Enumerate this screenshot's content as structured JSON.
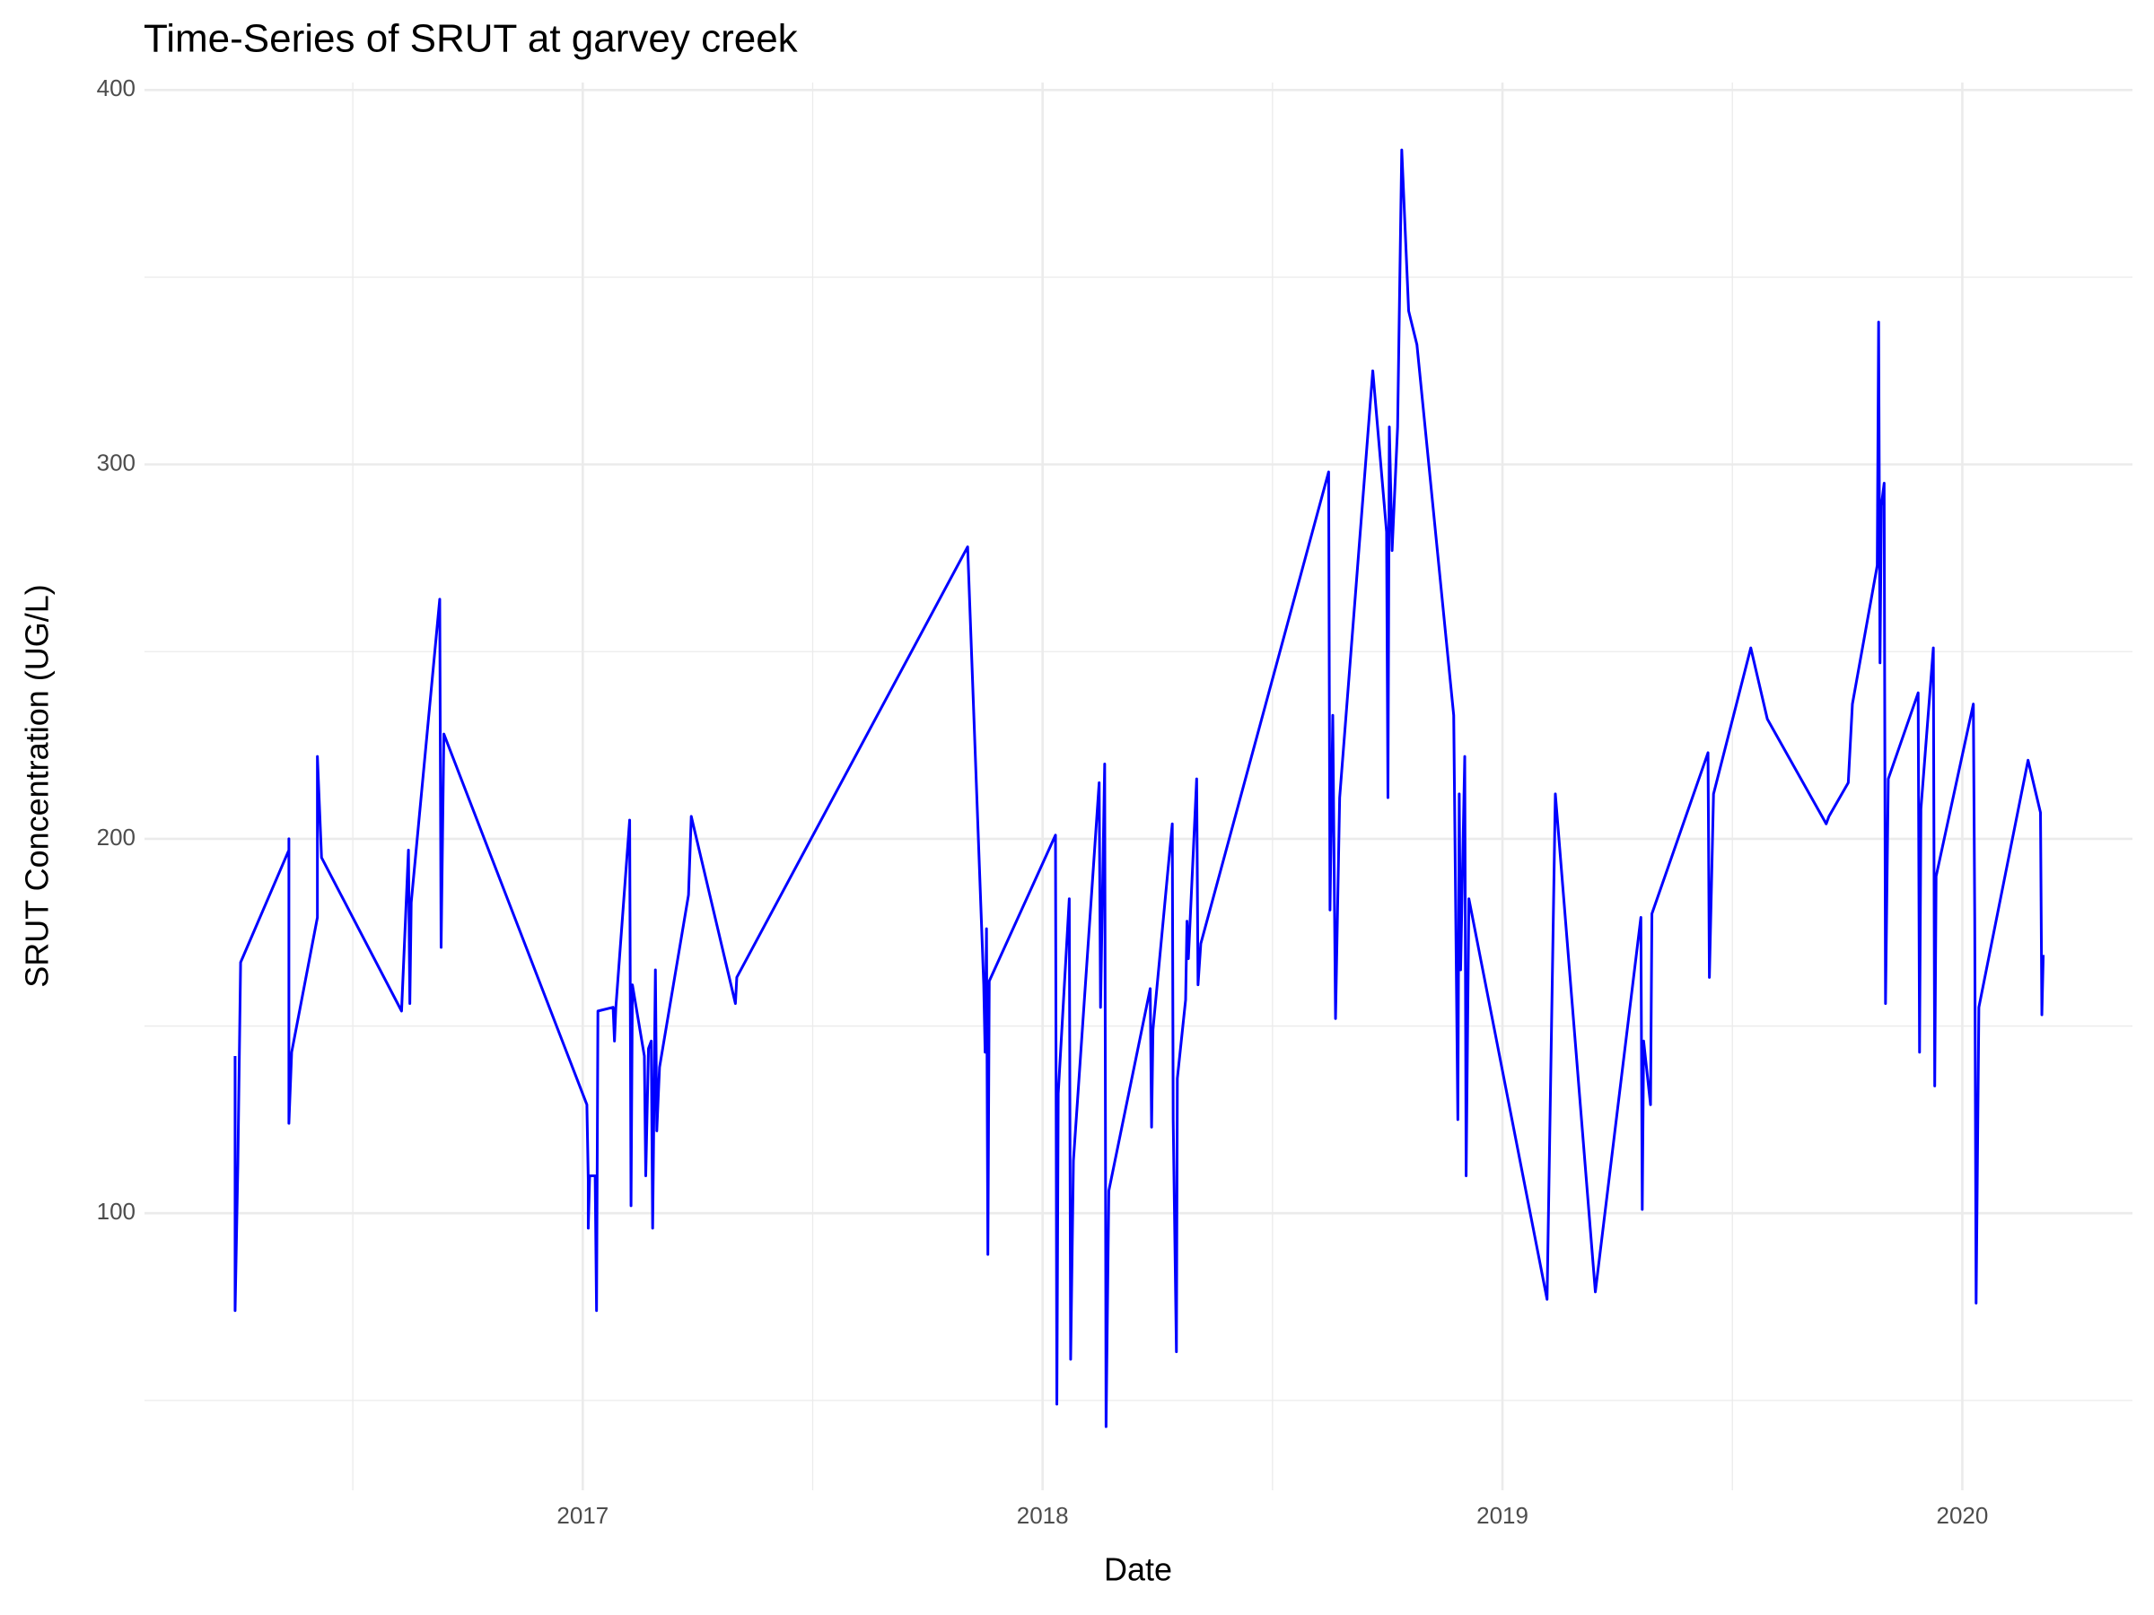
{
  "chart_data": {
    "type": "line",
    "title": "Time-Series of SRUT at garvey creek",
    "x_label": "Date",
    "y_label": "SRUT Concentration (UG/L)",
    "xlim": [
      2016.047,
      2020.37
    ],
    "ylim": [
      26,
      402
    ],
    "xticks": [
      2017,
      2018,
      2019,
      2020
    ],
    "yticks": [
      100,
      200,
      300,
      400
    ],
    "minor_xticks": [
      2016.5,
      2017.5,
      2018.5,
      2019.5
    ],
    "minor_yticks": [
      50,
      150,
      250,
      350
    ],
    "grid": true,
    "series": [
      {
        "name": "SRUT",
        "color": "#0000ff",
        "x": [
          2016.244,
          2016.244,
          2016.25,
          2016.256,
          2016.361,
          2016.361,
          2016.361,
          2016.367,
          2016.423,
          2016.423,
          2016.432,
          2016.606,
          2016.621,
          2016.624,
          2016.627,
          2016.689,
          2016.692,
          2016.698,
          2017.009,
          2017.012,
          2017.012,
          2017.015,
          2017.027,
          2017.03,
          2017.033,
          2017.066,
          2017.069,
          2017.072,
          2017.102,
          2017.105,
          2017.108,
          2017.134,
          2017.137,
          2017.143,
          2017.149,
          2017.152,
          2017.158,
          2017.161,
          2017.167,
          2017.23,
          2017.236,
          2017.332,
          2017.335,
          2017.837,
          2017.872,
          2017.875,
          2017.878,
          2017.881,
          2017.884,
          2018.028,
          2018.031,
          2018.034,
          2018.058,
          2018.061,
          2018.067,
          2018.123,
          2018.126,
          2018.135,
          2018.138,
          2018.144,
          2018.234,
          2018.237,
          2018.24,
          2018.282,
          2018.284,
          2018.291,
          2018.293,
          2018.311,
          2018.314,
          2018.317,
          2018.335,
          2018.338,
          2018.344,
          2018.622,
          2018.625,
          2018.631,
          2018.637,
          2018.646,
          2018.718,
          2018.748,
          2018.751,
          2018.754,
          2018.76,
          2018.772,
          2018.781,
          2018.796,
          2018.814,
          2018.894,
          2018.903,
          2018.906,
          2018.909,
          2018.918,
          2018.921,
          2018.927,
          2019.097,
          2019.115,
          2019.202,
          2019.301,
          2019.304,
          2019.307,
          2019.322,
          2019.325,
          2019.447,
          2019.45,
          2019.459,
          2019.54,
          2019.576,
          2019.704,
          2019.71,
          2019.752,
          2019.761,
          2019.815,
          2019.818,
          2019.821,
          2019.824,
          2019.83,
          2019.833,
          2019.839,
          2019.904,
          2019.907,
          2019.91,
          2019.937,
          2019.94,
          2019.943,
          2020.024,
          2020.027,
          2020.03,
          2020.036,
          2020.143,
          2020.17,
          2020.173,
          2020.176
        ],
        "values": [
          142,
          74,
          113,
          167,
          197,
          200,
          124,
          143,
          179,
          222,
          195,
          154,
          197,
          156,
          183,
          264,
          171,
          228,
          129,
          109,
          96,
          110,
          110,
          74,
          154,
          155,
          146,
          155,
          205,
          102,
          161,
          142,
          110,
          144,
          146,
          96,
          165,
          122,
          139,
          185,
          206,
          156,
          163,
          278,
          161,
          143,
          176,
          89,
          162,
          201,
          49,
          132,
          184,
          61,
          114,
          215,
          155,
          220,
          43,
          106,
          160,
          123,
          149,
          204,
          125,
          63,
          136,
          157,
          178,
          168,
          216,
          161,
          172,
          298,
          181,
          233,
          152,
          211,
          325,
          282,
          211,
          310,
          277,
          310,
          384,
          341,
          332,
          233,
          125,
          212,
          165,
          222,
          110,
          184,
          77,
          212,
          79,
          179,
          101,
          146,
          129,
          180,
          223,
          163,
          212,
          251,
          232,
          204,
          206,
          215,
          236,
          273,
          338,
          247,
          289,
          295,
          156,
          216,
          239,
          143,
          208,
          251,
          134,
          190,
          236,
          179,
          76,
          155,
          221,
          207,
          153,
          169
        ]
      }
    ]
  }
}
